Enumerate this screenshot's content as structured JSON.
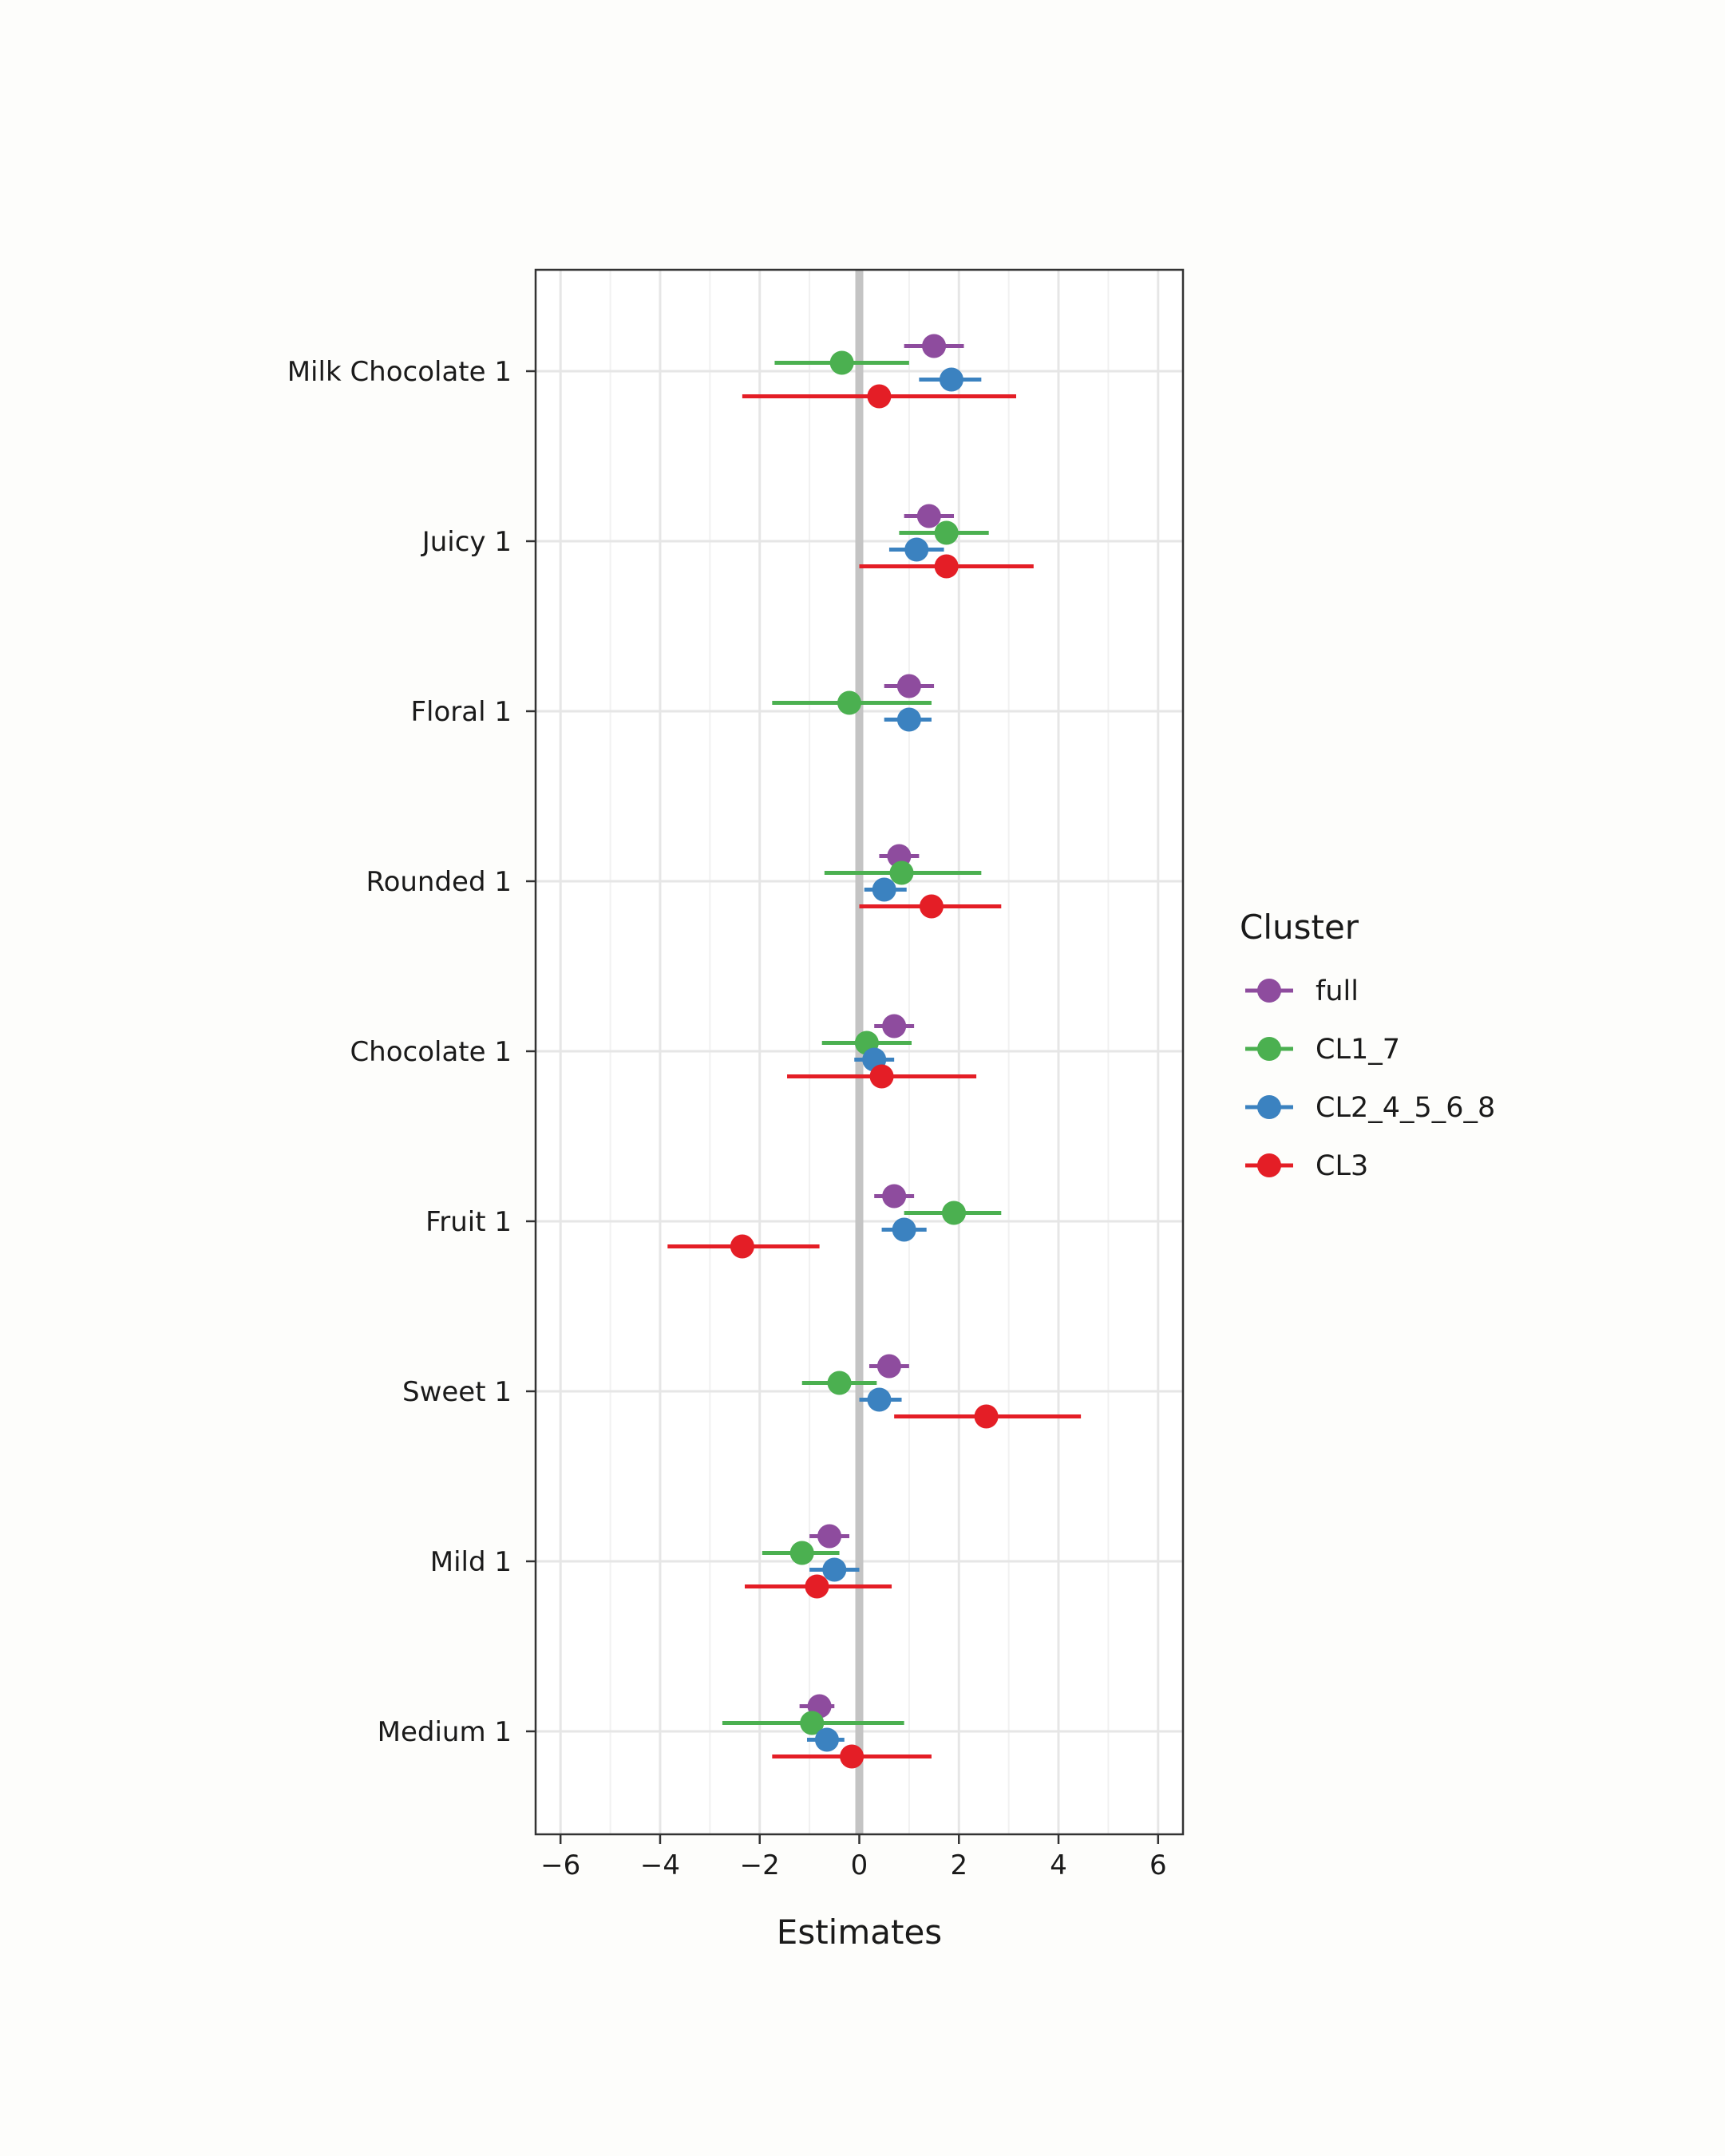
{
  "chart_data": {
    "type": "forest",
    "xlabel": "Estimates",
    "xlim": [
      -6.5,
      6.5
    ],
    "xticks": [
      -6,
      -4,
      -2,
      0,
      2,
      4,
      6
    ],
    "xtick_labels": [
      "−6",
      "−4",
      "−2",
      "0",
      "2",
      "4",
      "6"
    ],
    "categories": [
      "Milk Chocolate 1",
      "Juicy 1",
      "Floral 1",
      "Rounded 1",
      "Chocolate 1",
      "Fruit 1",
      "Sweet 1",
      "Mild 1",
      "Medium 1"
    ],
    "legend": {
      "title": "Cluster",
      "position": "right"
    },
    "series": [
      {
        "name": "full",
        "color": "#8e4c9e",
        "estimates": [
          1.5,
          1.4,
          1.0,
          0.8,
          0.7,
          0.7,
          0.6,
          -0.6,
          -0.8
        ],
        "lower": [
          0.9,
          0.9,
          0.5,
          0.4,
          0.3,
          0.3,
          0.2,
          -1.0,
          -1.2
        ],
        "upper": [
          2.1,
          1.9,
          1.5,
          1.2,
          1.1,
          1.1,
          1.0,
          -0.2,
          -0.5
        ]
      },
      {
        "name": "CL1_7",
        "color": "#4bb050",
        "estimates": [
          -0.35,
          1.75,
          -0.2,
          0.85,
          0.15,
          1.9,
          -0.4,
          -1.15,
          -0.95
        ],
        "lower": [
          -1.7,
          0.8,
          -1.75,
          -0.7,
          -0.75,
          0.9,
          -1.15,
          -1.95,
          -2.75
        ],
        "upper": [
          1.0,
          2.6,
          1.45,
          2.45,
          1.05,
          2.85,
          0.35,
          -0.4,
          0.9
        ]
      },
      {
        "name": "CL2_4_5_6_8",
        "color": "#3b82c0",
        "estimates": [
          1.85,
          1.15,
          1.0,
          0.5,
          0.3,
          0.9,
          0.4,
          -0.5,
          -0.65
        ],
        "lower": [
          1.2,
          0.6,
          0.5,
          0.1,
          -0.1,
          0.45,
          0.0,
          -1.0,
          -1.05
        ],
        "upper": [
          2.45,
          1.7,
          1.45,
          0.95,
          0.7,
          1.35,
          0.85,
          0.0,
          -0.3
        ]
      },
      {
        "name": "CL3",
        "color": "#e41e26",
        "estimates": [
          0.4,
          1.75,
          null,
          1.45,
          0.45,
          -2.35,
          2.55,
          -0.85,
          -0.15
        ],
        "lower": [
          -2.35,
          0.0,
          null,
          0.0,
          -1.45,
          -3.85,
          0.7,
          -2.3,
          -1.75
        ],
        "upper": [
          3.15,
          3.5,
          null,
          2.85,
          2.35,
          -0.8,
          4.45,
          0.65,
          1.45
        ]
      }
    ]
  }
}
